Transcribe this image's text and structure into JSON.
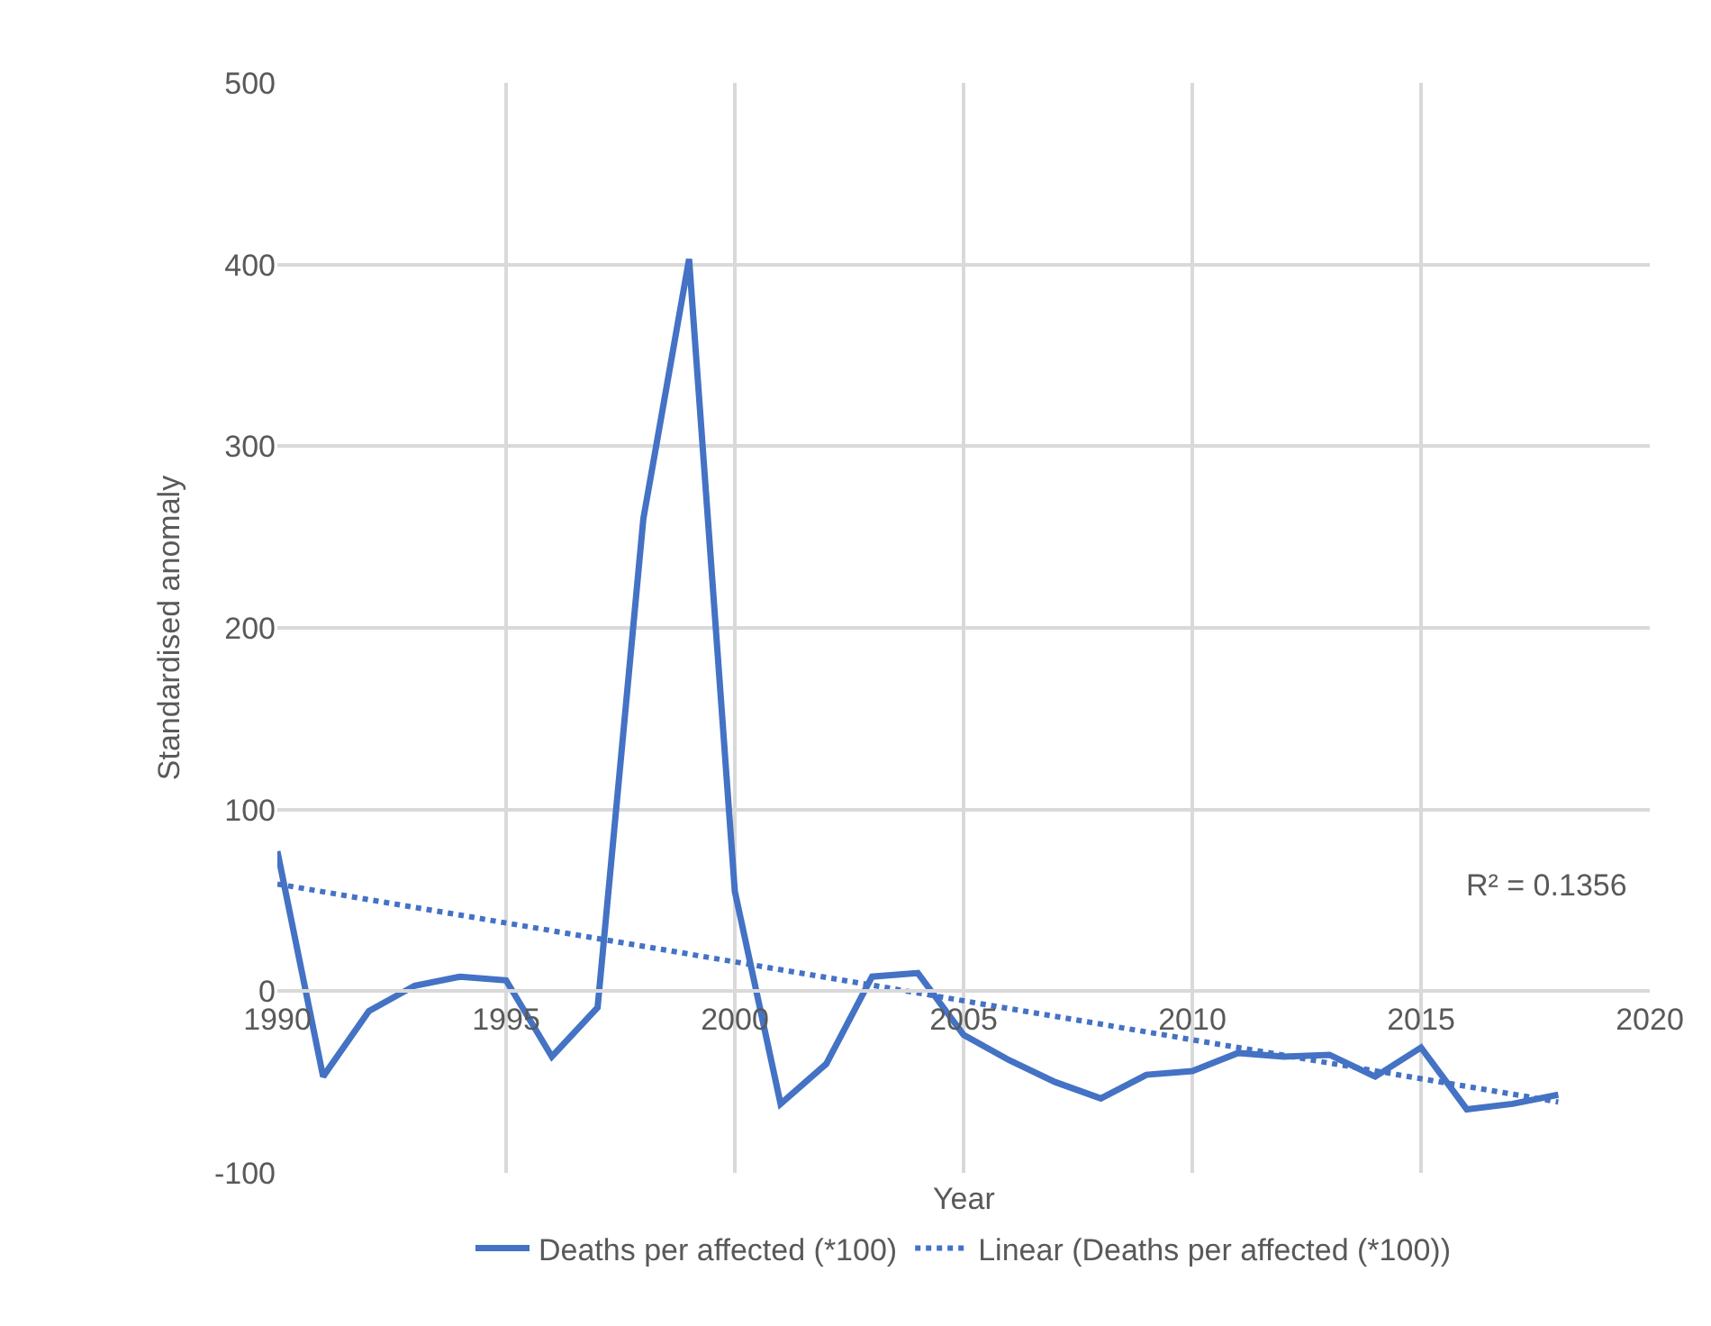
{
  "chart_data": {
    "type": "line",
    "xlabel": "Year",
    "ylabel": "Standardised anomaly",
    "x": [
      1990,
      1991,
      1992,
      1993,
      1994,
      1995,
      1996,
      1997,
      1998,
      1999,
      2000,
      2001,
      2002,
      2003,
      2004,
      2005,
      2006,
      2007,
      2008,
      2009,
      2010,
      2011,
      2012,
      2013,
      2014,
      2015,
      2016,
      2017,
      2018
    ],
    "series": [
      {
        "name": "Deaths per affected (*100)",
        "color": "#4472c4",
        "line_style": "solid",
        "values": [
          77,
          -47,
          -11,
          3,
          8,
          6,
          -36,
          -9,
          260,
          403,
          55,
          -62,
          -40,
          8,
          10,
          -24,
          -38,
          -50,
          -59,
          -46,
          -44,
          -34,
          -36,
          -35,
          -47,
          -31,
          -65,
          -62,
          -57
        ]
      },
      {
        "name": "Linear (Deaths per affected (*100))",
        "color": "#4472c4",
        "line_style": "dotted",
        "x": [
          1990,
          2018
        ],
        "values": [
          59,
          -61
        ]
      }
    ],
    "xlim": [
      1990,
      2020
    ],
    "xticks": [
      1990,
      1995,
      2000,
      2005,
      2010,
      2015,
      2020
    ],
    "ylim": [
      -100,
      500
    ],
    "yticks": [
      -100,
      0,
      100,
      200,
      300,
      400,
      500
    ],
    "grid": true,
    "legend": "bottom",
    "marker": "none",
    "annotations": [
      "R² = 0.1356"
    ]
  }
}
